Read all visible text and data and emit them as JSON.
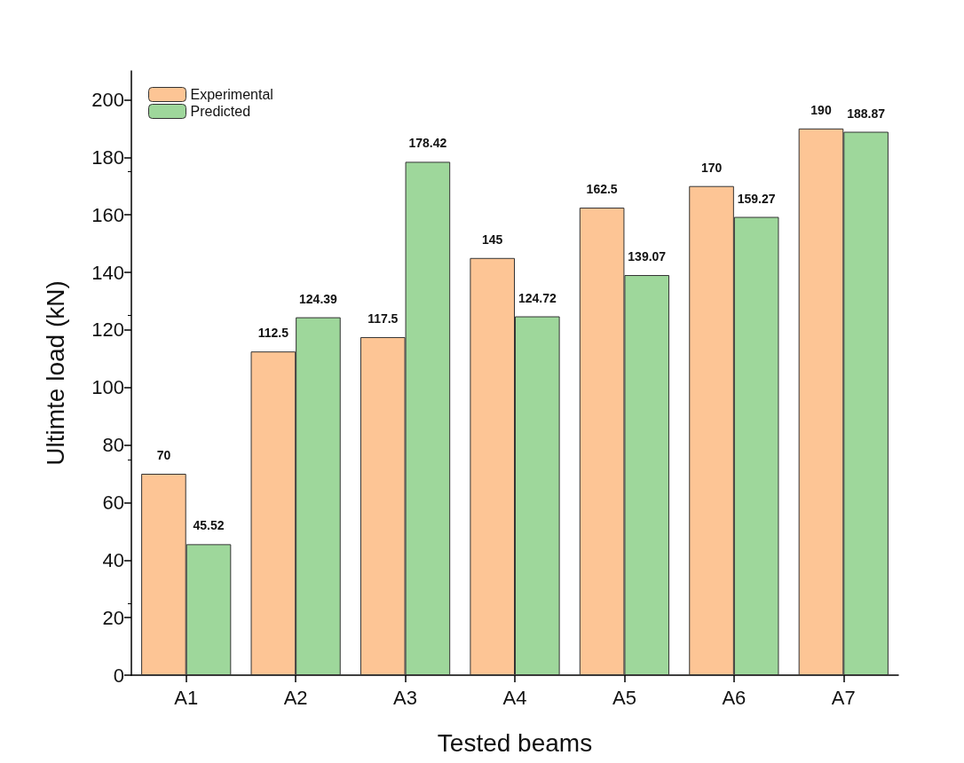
{
  "chart_data": {
    "type": "bar",
    "xlabel": "Tested beams",
    "ylabel": "Ultimte load (kN)",
    "categories": [
      "A1",
      "A2",
      "A3",
      "A4",
      "A5",
      "A6",
      "A7"
    ],
    "series": [
      {
        "name": "Experimental",
        "color": "#fdc595",
        "values": [
          70,
          112.5,
          117.5,
          145,
          162.5,
          170,
          190
        ]
      },
      {
        "name": "Predicted",
        "color": "#9ed79b",
        "values": [
          45.52,
          124.39,
          178.42,
          124.72,
          139.07,
          159.27,
          188.87
        ]
      }
    ],
    "ylim": [
      0,
      210
    ],
    "yticks": [
      0,
      20,
      40,
      60,
      80,
      100,
      120,
      140,
      160,
      180,
      200
    ],
    "data_labels": true,
    "legend": "top left",
    "grid": false
  }
}
